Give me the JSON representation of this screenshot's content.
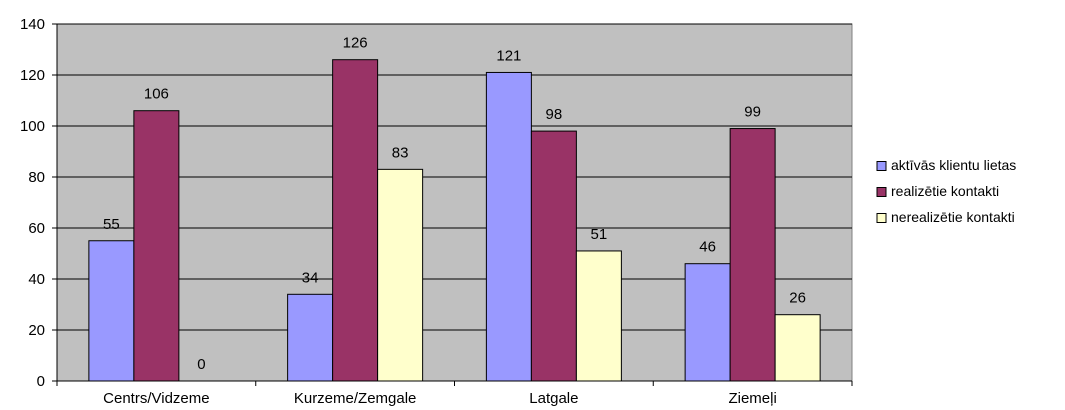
{
  "chart_data": {
    "type": "bar",
    "categories": [
      "Centrs/Vidzeme",
      "Kurzeme/Zemgale",
      "Latgale",
      "Ziemeļi"
    ],
    "series": [
      {
        "name": "aktīvās klientu lietas",
        "values": [
          55,
          34,
          121,
          46
        ],
        "color": "#9999ff"
      },
      {
        "name": "realizētie kontakti",
        "values": [
          106,
          126,
          98,
          99
        ],
        "color": "#993366"
      },
      {
        "name": "nerealizētie kontakti",
        "values": [
          0,
          83,
          51,
          26
        ],
        "color": "#ffffcc"
      }
    ],
    "ylim": [
      0,
      140
    ],
    "yticks": [
      0,
      20,
      40,
      60,
      80,
      100,
      120,
      140
    ],
    "plot_background": "#c0c0c0",
    "grid": true,
    "legend_position": "right"
  }
}
